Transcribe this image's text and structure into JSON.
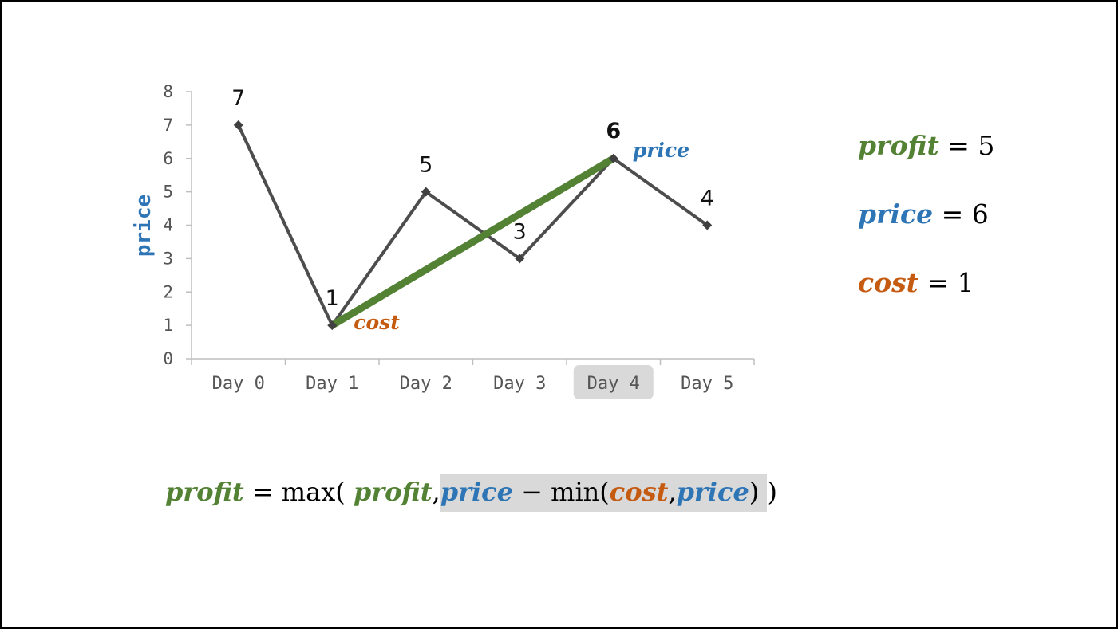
{
  "chart_data": {
    "type": "line",
    "categories": [
      "Day 0",
      "Day 1",
      "Day 2",
      "Day 3",
      "Day 4",
      "Day 5"
    ],
    "values": [
      7,
      1,
      5,
      3,
      6,
      4
    ],
    "data_labels": [
      "7",
      "1",
      "5",
      "3",
      "6",
      "4"
    ],
    "ylabel": "price",
    "ylim": [
      0,
      8
    ],
    "yticks": [
      "0",
      "1",
      "2",
      "3",
      "4",
      "5",
      "6",
      "7",
      "8"
    ],
    "highlighted_category": "Day 4",
    "profit_segment": {
      "from": "Day 1",
      "to": "Day 4"
    },
    "annotations": {
      "cost_label": "cost",
      "price_label": "price"
    },
    "colors": {
      "line": "#4d4d4d",
      "profit": "#548235",
      "price": "#2e75b6",
      "cost": "#c55a11",
      "highlight": "#d9d9d9"
    }
  },
  "side_equations": {
    "profit": {
      "name": "profit",
      "op": "=",
      "value": "5"
    },
    "price": {
      "name": "price",
      "op": "=",
      "value": "6"
    },
    "cost": {
      "name": "cost",
      "op": "=",
      "value": "1"
    }
  },
  "formula": {
    "lhs": "profit",
    "eq": "=",
    "max": "max(",
    "arg1": "profit",
    "comma1": ",",
    "price1": "price",
    "minus": "−",
    "min": "min(",
    "cost": "cost",
    "comma2": ",",
    "price2": "price",
    "close_inner": ")",
    "close_outer": ")"
  }
}
